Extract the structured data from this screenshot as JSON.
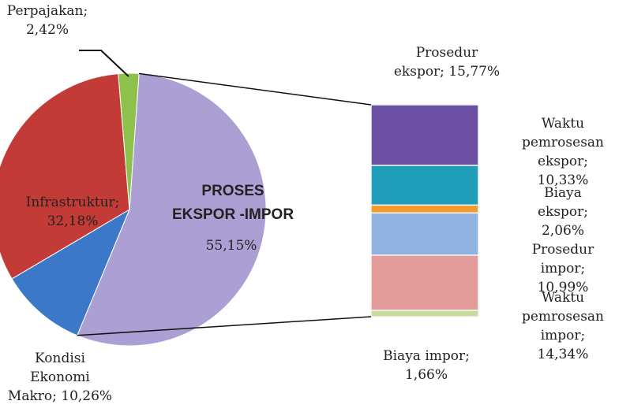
{
  "chart_data": {
    "type": "bar-of-pie",
    "categories": [
      "PROSES\nEKSPOR -IMPOR",
      "Kondisi\nEkonomi\nMakro;",
      "Infrastruktur;",
      "Perpajakan;"
    ],
    "values": [
      55.15,
      10.26,
      32.18,
      2.42
    ],
    "value_labels": [
      "55,15%",
      "10,26%",
      "32,18%",
      "2,42%"
    ],
    "colors": [
      "#ab9fd3",
      "#3b78c8",
      "#c33b37",
      "#8dc14c"
    ],
    "bar": {
      "categories": [
        "Prosedur\nekspor;",
        "Waktu\npemrosesan\nekspor;",
        "Biaya ekspor;",
        "Prosedur impor;",
        "Waktu\npemrosesan\nimpor;",
        "Biaya impor;"
      ],
      "values": [
        15.77,
        10.33,
        2.06,
        10.99,
        14.34,
        1.66
      ],
      "value_labels": [
        "15,77%",
        "10,33%",
        "2,06%",
        "10,99%",
        "14,34%",
        "1,66%"
      ],
      "colors": [
        "#6b50a3",
        "#1f9eba",
        "#f39a2c",
        "#90b2e2",
        "#e49c9b",
        "#c6dc9a"
      ]
    }
  }
}
